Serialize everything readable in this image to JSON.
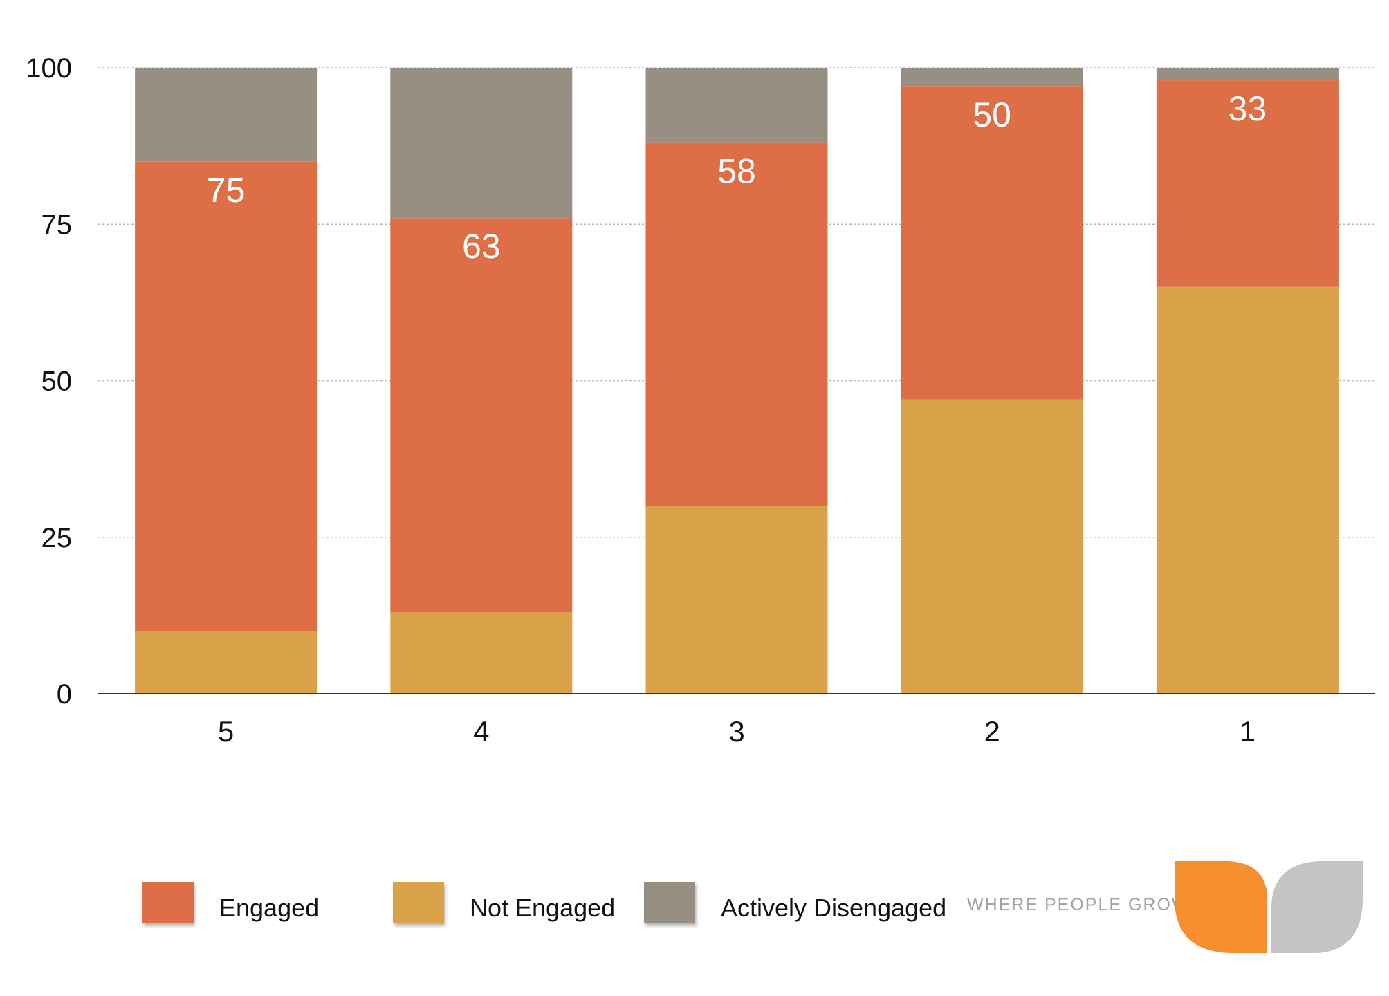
{
  "chart_data": {
    "type": "bar",
    "stacked": true,
    "categories": [
      "5",
      "4",
      "3",
      "2",
      "1"
    ],
    "series": [
      {
        "name": "Not Engaged",
        "color": "#DBA349",
        "values": [
          10,
          13,
          30,
          47,
          65
        ]
      },
      {
        "name": "Engaged",
        "color": "#DE6E46",
        "values": [
          75,
          63,
          58,
          50,
          33
        ]
      },
      {
        "name": "Actively Disengaged",
        "color": "#988F83",
        "values": [
          15,
          24,
          12,
          3,
          2
        ]
      }
    ],
    "data_labels": {
      "series": "Engaged",
      "values": [
        "75",
        "63",
        "58",
        "50",
        "33"
      ]
    },
    "ylim": [
      0,
      100
    ],
    "yticks": [
      "0",
      "25",
      "50",
      "75",
      "100"
    ],
    "grid": true,
    "legend_position": "bottom",
    "legend": [
      "Engaged",
      "Not Engaged",
      "Actively Disengaged"
    ],
    "title": "",
    "xlabel": "",
    "ylabel": ""
  },
  "logo": {
    "text": "WHERE PEOPLE GROW",
    "icon": "two-leaves-icon",
    "colors": [
      "#F88F2E",
      "#C4C4C4"
    ]
  }
}
